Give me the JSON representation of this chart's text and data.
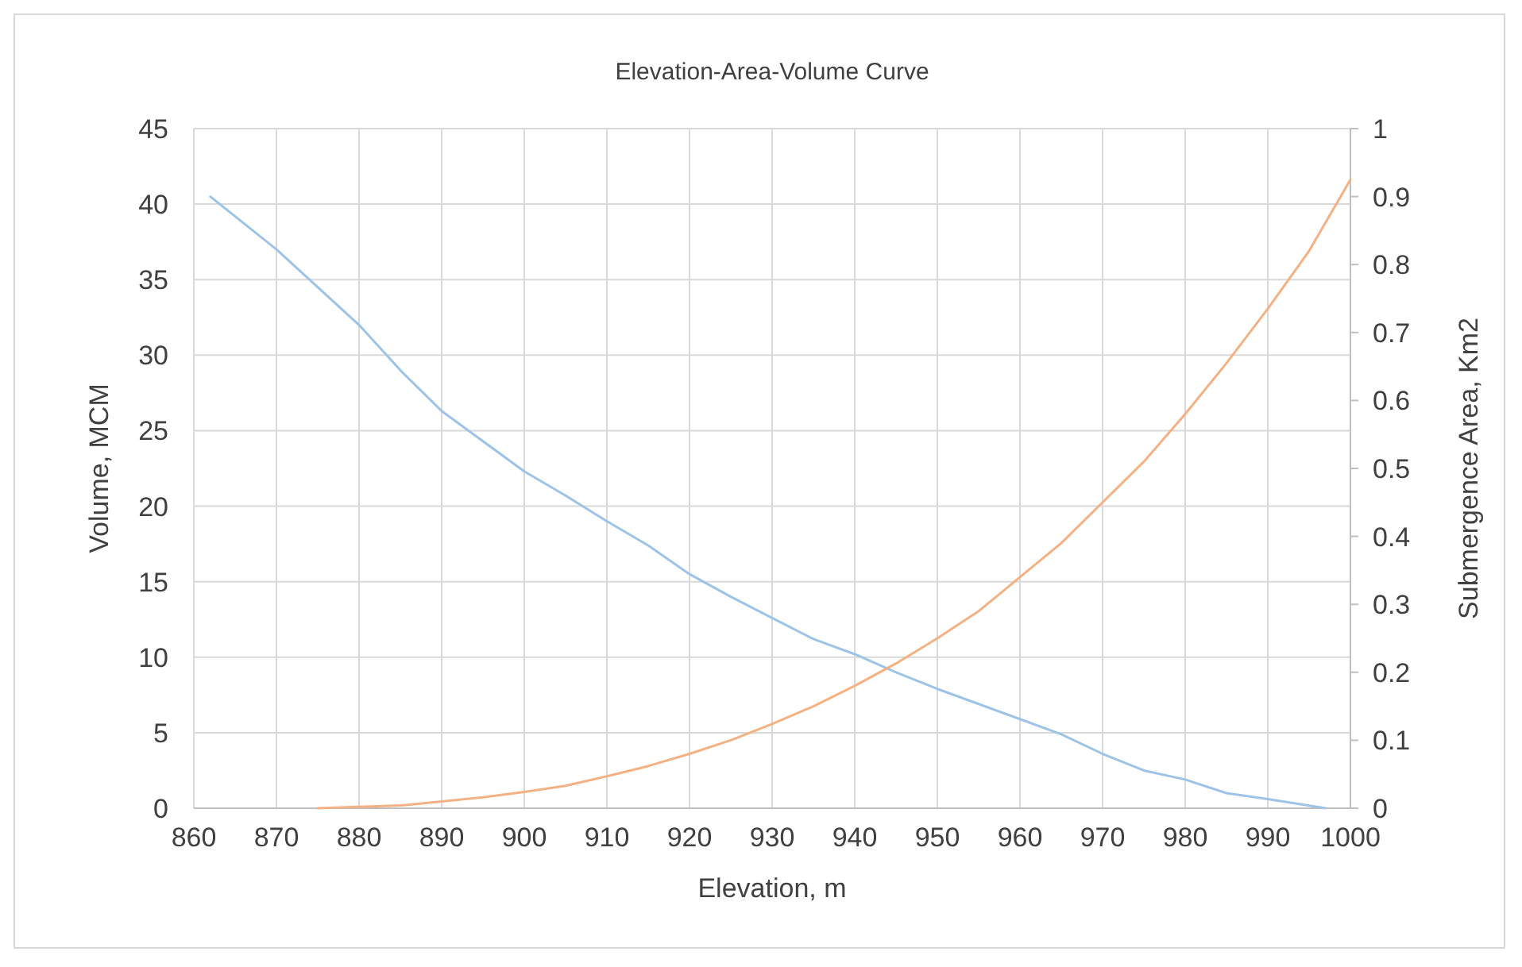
{
  "chart_data": {
    "type": "line",
    "title": "Elevation-Area-Volume Curve",
    "xlabel": "Elevation, m",
    "ylabel": "Volume, MCM",
    "y2label": "Submergence Area, Km2",
    "xlim": [
      860,
      1000
    ],
    "xticks": [
      860,
      870,
      880,
      890,
      900,
      910,
      920,
      930,
      940,
      950,
      960,
      970,
      980,
      990,
      1000
    ],
    "ylim": [
      0,
      45
    ],
    "yticks": [
      0,
      5,
      10,
      15,
      20,
      25,
      30,
      35,
      40,
      45
    ],
    "y2lim": [
      0,
      1
    ],
    "y2ticks": [
      0,
      0.1,
      0.2,
      0.3,
      0.4,
      0.5,
      0.6,
      0.7,
      0.8,
      0.9,
      1
    ],
    "grid": true,
    "marker": "none",
    "line_style": "solid",
    "series": [
      {
        "color": "#9dc3e6",
        "x": [
          862,
          870,
          880,
          885,
          890,
          900,
          905,
          910,
          915,
          920,
          925,
          930,
          935,
          940,
          945,
          950,
          955,
          960,
          965,
          970,
          975,
          980,
          985,
          990,
          997
        ],
        "values": [
          40.5,
          37,
          32,
          29,
          26.3,
          22.3,
          20.7,
          19,
          17.4,
          15.5,
          14,
          12.6,
          11.2,
          10.2,
          9,
          7.9,
          6.9,
          5.9,
          4.9,
          3.6,
          2.5,
          1.9,
          1,
          0.6,
          0
        ]
      },
      {
        "color": "#f4b183",
        "axis": "y2",
        "x": [
          875,
          880,
          885,
          890,
          895,
          900,
          905,
          910,
          915,
          920,
          925,
          930,
          935,
          940,
          945,
          950,
          955,
          960,
          965,
          970,
          975,
          980,
          985,
          990,
          995,
          1000
        ],
        "values": [
          0,
          0.002,
          0.004,
          0.01,
          0.016,
          0.024,
          0.033,
          0.047,
          0.062,
          0.08,
          0.1,
          0.124,
          0.15,
          0.18,
          0.213,
          0.25,
          0.29,
          0.34,
          0.39,
          0.45,
          0.51,
          0.58,
          0.655,
          0.735,
          0.82,
          0.925
        ]
      }
    ]
  }
}
